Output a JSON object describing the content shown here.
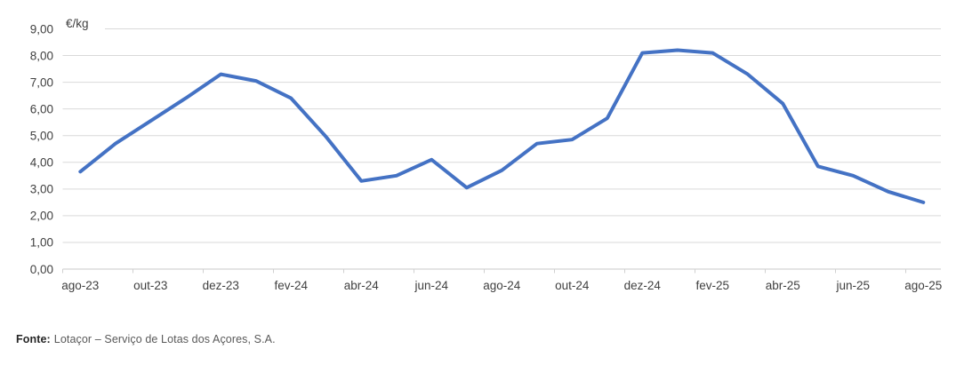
{
  "chart_data": {
    "type": "line",
    "title": "",
    "unit_label": "€/kg",
    "xlabel": "",
    "ylabel": "€/kg",
    "x": [
      "ago-23",
      "set-23",
      "out-23",
      "nov-23",
      "dez-23",
      "jan-24",
      "fev-24",
      "mar-24",
      "abr-24",
      "mai-24",
      "jun-24",
      "jul-24",
      "ago-24",
      "set-24",
      "out-24",
      "nov-24",
      "dez-24",
      "jan-25",
      "fev-25",
      "mar-25",
      "abr-25",
      "mai-25",
      "jun-25",
      "jul-25",
      "ago-25"
    ],
    "values": [
      3.65,
      4.7,
      5.55,
      6.4,
      7.3,
      7.05,
      6.4,
      4.95,
      3.3,
      3.5,
      4.1,
      3.05,
      3.7,
      4.7,
      4.85,
      5.65,
      8.1,
      8.2,
      8.1,
      7.3,
      6.2,
      3.85,
      3.5,
      2.9,
      2.5
    ],
    "x_tick_labels": [
      "ago-23",
      "out-23",
      "dez-23",
      "fev-24",
      "abr-24",
      "jun-24",
      "ago-24",
      "out-24",
      "dez-24",
      "fev-25",
      "abr-25",
      "jun-25",
      "ago-25"
    ],
    "x_label_interval": 2,
    "y_tick_labels": [
      "0,00",
      "1,00",
      "2,00",
      "3,00",
      "4,00",
      "5,00",
      "6,00",
      "7,00",
      "8,00",
      "9,00"
    ],
    "ylim": [
      0,
      9
    ],
    "y_step": 1,
    "grid": true,
    "legend": "none"
  },
  "colors": {
    "line": "#4472C4",
    "grid": "#D9D9D9",
    "axis": "#C9C9C9",
    "tick": "#D0D0D0",
    "axis_label": "#404040",
    "source_label": "#262626",
    "source_text": "#595959"
  },
  "footer": {
    "source_label": "Fonte:",
    "source_text": "Lotaçor – Serviço de Lotas dos Açores, S.A."
  }
}
